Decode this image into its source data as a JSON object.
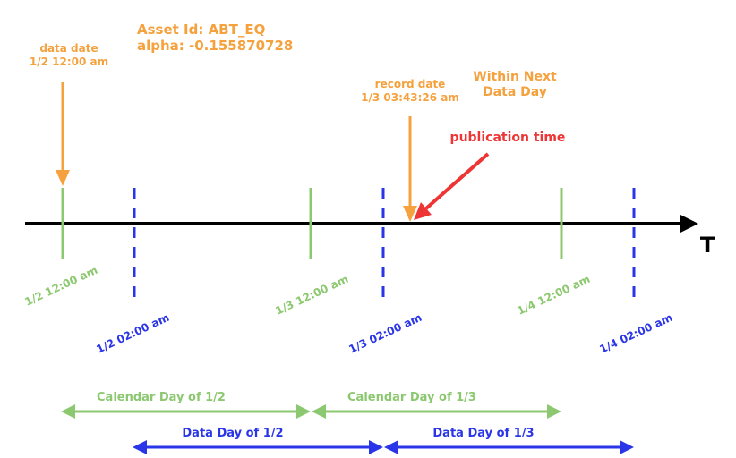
{
  "colors": {
    "orange": "#f5a13d",
    "green": "#8cc870",
    "blue": "#2a35e8",
    "red": "#ee3535",
    "black": "#000000"
  },
  "asset": {
    "id_line": "Asset Id: ABT_EQ",
    "alpha_line": "alpha: -0.155870728"
  },
  "data_date": {
    "title": "data date",
    "value": "1/2 12:00 am"
  },
  "record_date": {
    "title": "record date",
    "value": "1/3 03:43:26 am"
  },
  "within_next": {
    "line1": "Within Next",
    "line2": "Data Day"
  },
  "publication_time": "publication time",
  "axis_label": "T",
  "calendar_ticks": [
    "1/2 12:00 am",
    "1/3 12:00 am",
    "1/4 12:00 am"
  ],
  "data_ticks": [
    "1/2 02:00 am",
    "1/3 02:00 am",
    "1/4 02:00 am"
  ],
  "calendar_days": [
    "Calendar Day of 1/2",
    "Calendar Day of 1/3"
  ],
  "data_days": [
    "Data Day of 1/2",
    "Data Day of 1/3"
  ]
}
